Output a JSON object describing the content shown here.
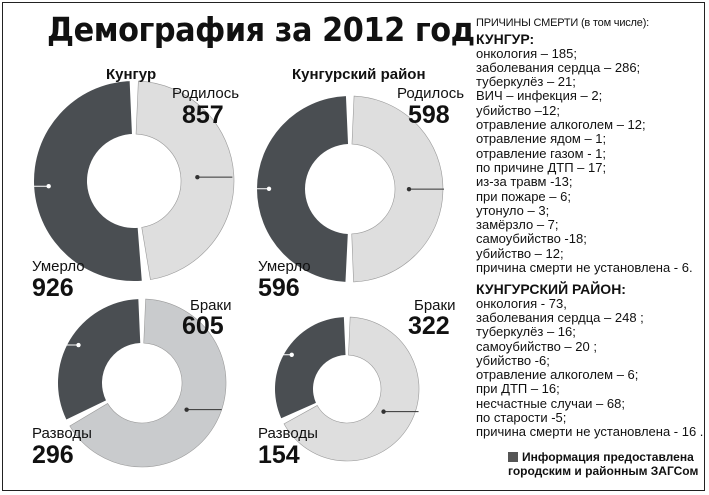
{
  "title": "Демография за 2012 год",
  "causes": {
    "header": "ПРИЧИНЫ СМЕРТИ (в том числе):",
    "sections": [
      {
        "title": "КУНГУР:",
        "items": [
          "онкология – 185;",
          "заболевания сердца – 286;",
          "туберкулёз – 21;",
          "ВИЧ – инфекция – 2;",
          "убийство –12;",
          "отравление алкоголем – 12;",
          "отравление ядом – 1;",
          "отравление газом - 1;",
          "по причине ДТП – 17;",
          "из-за травм -13;",
          "при пожаре – 6;",
          "утонуло – 3;",
          "замёрзло – 7;",
          "самоубийство -18;",
          "убийство – 12;",
          "причина смерти не установлена - 6."
        ]
      },
      {
        "title": "КУНГУРСКИЙ РАЙОН:",
        "items": [
          "онкология - 73,",
          "заболевания сердца – 248 ;",
          "туберкулёз – 16;",
          "самоубийство – 20 ;",
          "убийство -6;",
          "отравление алкоголем – 6;",
          "при ДТП – 16;",
          "несчастные случаи – 68;",
          "по старости -5;",
          "причина смерти не установлена - 16 ."
        ]
      }
    ]
  },
  "footer": {
    "line1": "Информация предоставлена",
    "line2": "городским и районным ЗАГСом"
  },
  "colors": {
    "dark": "#4a4e52",
    "light": "#dedede",
    "light2": "#c9cbcd"
  },
  "chart_data": [
    {
      "type": "pie",
      "title": "Кунгур",
      "categories": [
        "Родилось",
        "Умерло"
      ],
      "values": [
        857,
        926
      ],
      "value_labels": [
        "857",
        "926"
      ]
    },
    {
      "type": "pie",
      "title": "Кунгурский район",
      "categories": [
        "Родилось",
        "Умерло"
      ],
      "values": [
        598,
        596
      ],
      "value_labels": [
        "598",
        "596"
      ]
    },
    {
      "type": "pie",
      "title": "",
      "categories": [
        "Браки",
        "Разводы"
      ],
      "values": [
        605,
        296
      ],
      "value_labels": [
        "605",
        "296"
      ]
    },
    {
      "type": "pie",
      "title": "",
      "categories": [
        "Браки",
        "Разводы"
      ],
      "values": [
        322,
        154
      ],
      "value_labels": [
        "322",
        "154"
      ]
    }
  ]
}
